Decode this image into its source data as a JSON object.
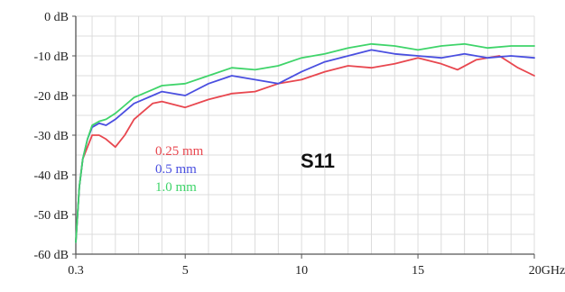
{
  "chart_data": {
    "type": "line",
    "title": "S11",
    "xlabel": "",
    "ylabel": "",
    "x_unit": "GHz",
    "xlim": [
      0.3,
      20
    ],
    "ylim": [
      -60,
      0
    ],
    "grid": true,
    "x_ticks": [
      {
        "value": 0.3,
        "label": "0.3"
      },
      {
        "value": 5,
        "label": "5"
      },
      {
        "value": 10,
        "label": "10"
      },
      {
        "value": 15,
        "label": "15"
      },
      {
        "value": 20,
        "label": "20GHz"
      }
    ],
    "y_ticks": [
      {
        "value": 0,
        "label": "0 dB"
      },
      {
        "value": -10,
        "label": "-10 dB"
      },
      {
        "value": -20,
        "label": "-20 dB"
      },
      {
        "value": -30,
        "label": "-30 dB"
      },
      {
        "value": -40,
        "label": "-40 dB"
      },
      {
        "value": -50,
        "label": "-50 dB"
      },
      {
        "value": -60,
        "label": "-60 dB"
      }
    ],
    "legend_position": "center-left",
    "series": [
      {
        "name": "0.25 mm",
        "color": "#e8474f",
        "x": [
          0.3,
          0.45,
          0.6,
          0.8,
          1.0,
          1.3,
          1.6,
          2.0,
          2.4,
          2.8,
          3.2,
          3.6,
          4.0,
          5.0,
          6.0,
          7.0,
          8.0,
          9.0,
          10.0,
          11.0,
          12.0,
          13.0,
          14.0,
          15.0,
          16.0,
          16.7,
          17.5,
          18.5,
          19.3,
          20.0
        ],
        "y": [
          -57,
          -43,
          -36,
          -33,
          -30,
          -30,
          -31,
          -33,
          -30,
          -26,
          -24,
          -22,
          -21.5,
          -23,
          -21,
          -19.5,
          -19,
          -17,
          -16,
          -14,
          -12.5,
          -13,
          -12,
          -10.5,
          -12,
          -13.5,
          -11,
          -10,
          -13,
          -15
        ]
      },
      {
        "name": "0.5 mm",
        "color": "#4a4fe0",
        "x": [
          0.3,
          0.45,
          0.6,
          0.8,
          1.0,
          1.3,
          1.6,
          2.0,
          2.4,
          2.8,
          3.2,
          3.6,
          4.0,
          5.0,
          6.0,
          7.0,
          8.0,
          9.0,
          10.0,
          11.0,
          12.0,
          13.0,
          14.0,
          15.0,
          16.0,
          17.0,
          18.0,
          19.0,
          20.0
        ],
        "y": [
          -57,
          -43,
          -36,
          -31,
          -28,
          -27,
          -27.5,
          -26,
          -24,
          -22,
          -21,
          -20,
          -19,
          -20,
          -17,
          -15,
          -16,
          -17,
          -14,
          -11.5,
          -10,
          -8.5,
          -9.5,
          -10,
          -10.5,
          -9.5,
          -10.5,
          -10,
          -10.5
        ]
      },
      {
        "name": "1.0 mm",
        "color": "#3fd46a",
        "x": [
          0.3,
          0.45,
          0.6,
          0.8,
          1.0,
          1.3,
          1.6,
          2.0,
          2.4,
          2.8,
          3.2,
          3.6,
          4.0,
          5.0,
          6.0,
          7.0,
          8.0,
          9.0,
          10.0,
          11.0,
          12.0,
          13.0,
          14.0,
          15.0,
          16.0,
          17.0,
          18.0,
          19.0,
          20.0
        ],
        "y": [
          -57,
          -43,
          -36,
          -31,
          -27.5,
          -26.5,
          -26,
          -24.5,
          -22.5,
          -20.5,
          -19.5,
          -18.5,
          -17.5,
          -17,
          -15,
          -13,
          -13.5,
          -12.5,
          -10.5,
          -9.5,
          -8,
          -7,
          -7.5,
          -8.5,
          -7.5,
          -7,
          -8,
          -7.5,
          -7.5
        ]
      }
    ]
  }
}
